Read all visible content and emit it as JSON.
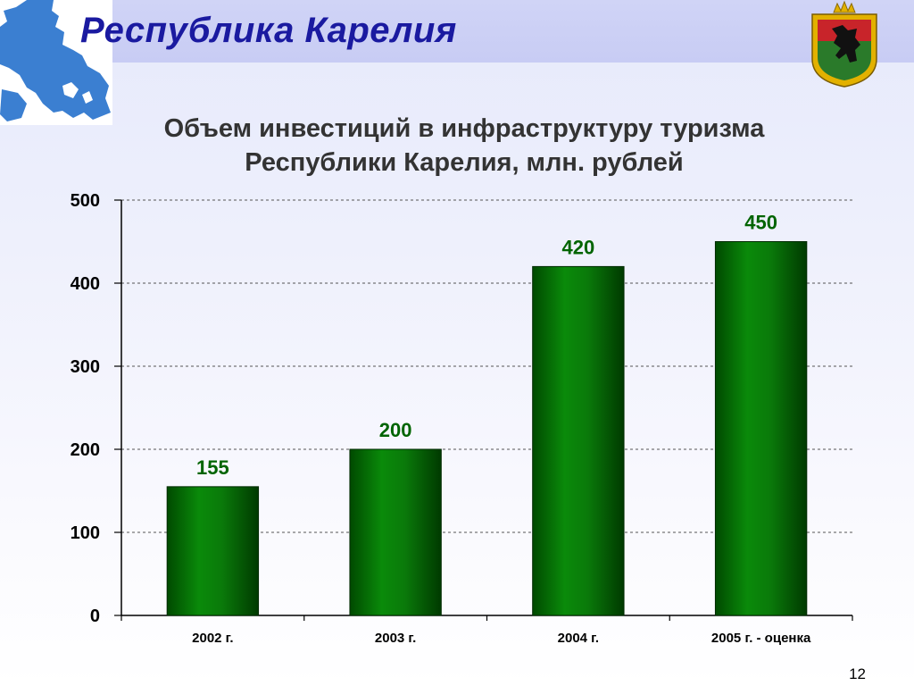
{
  "header": {
    "title": "Республика Карелия"
  },
  "colors": {
    "title": "#1a1aa0",
    "bar": "#0a7a0a",
    "data_label": "#006400",
    "map": "#3b7fd1"
  },
  "icons": {
    "map": "karelia-map-icon",
    "emblem": "karelia-coat-of-arms-icon"
  },
  "chart_data": {
    "type": "bar",
    "title": "Объем инвестиций в инфраструктуру туризма Республики Карелия, млн. рублей",
    "title_lines": [
      "Объем инвестиций в инфраструктуру туризма",
      "Республики Карелия, млн. рублей"
    ],
    "categories": [
      "2002 г.",
      "2003 г.",
      "2004 г.",
      "2005 г. - оценка"
    ],
    "values": [
      155,
      200,
      420,
      450
    ],
    "ylim": [
      0,
      500
    ],
    "yticks": [
      0,
      100,
      200,
      300,
      400,
      500
    ],
    "grid": true,
    "legend": "none",
    "xlabel": "",
    "ylabel": ""
  },
  "footer": {
    "page_number": "12"
  }
}
